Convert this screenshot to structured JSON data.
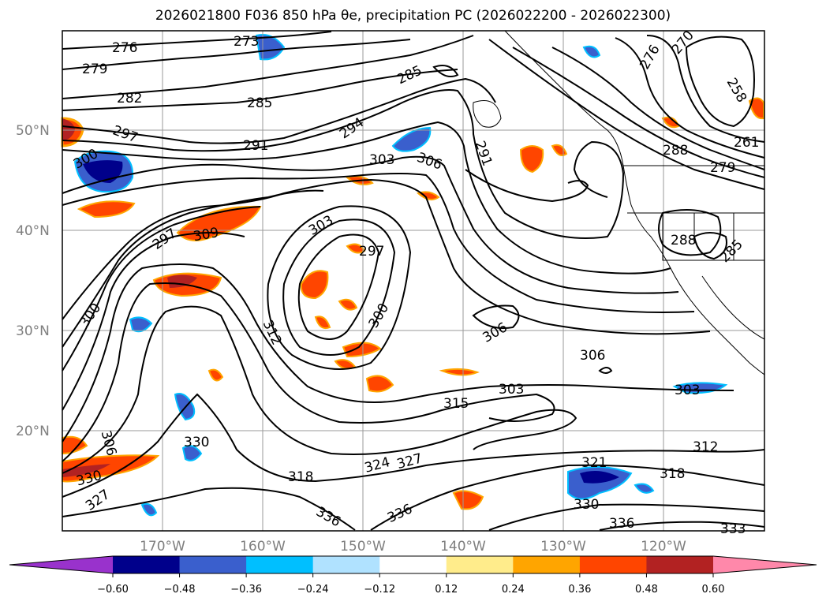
{
  "title": "2026021800 F036 850 hPa θe, precipitation PC (2026022200 - 2026022300)",
  "lat_labels": [
    "50°N",
    "40°N",
    "30°N",
    "20°N"
  ],
  "lon_labels": [
    "170°W",
    "160°W",
    "150°W",
    "140°W",
    "130°W",
    "120°W"
  ],
  "colorbar": {
    "ticks": [
      "−0.60",
      "−0.48",
      "−0.36",
      "−0.24",
      "−0.12",
      "0.12",
      "0.24",
      "0.36",
      "0.48",
      "0.60"
    ],
    "colors": [
      "#9932cc",
      "#00008b",
      "#3a5fcd",
      "#00bfff",
      "#b0e2ff",
      "#ffffff",
      "#ffec8b",
      "#ffa500",
      "#ff4500",
      "#b22222",
      "#ff88aa"
    ]
  },
  "contour_labels": [
    "276",
    "273",
    "279",
    "282",
    "285",
    "285",
    "297",
    "291",
    "300",
    "294",
    "303",
    "306",
    "291",
    "297",
    "309",
    "303",
    "297",
    "300",
    "300",
    "312",
    "306",
    "306",
    "303",
    "315",
    "303",
    "306",
    "312",
    "318",
    "324",
    "327",
    "330",
    "318",
    "321",
    "330",
    "336",
    "336",
    "336",
    "333",
    "330",
    "327",
    "258",
    "261",
    "270",
    "276",
    "288",
    "279",
    "285",
    "288"
  ]
}
